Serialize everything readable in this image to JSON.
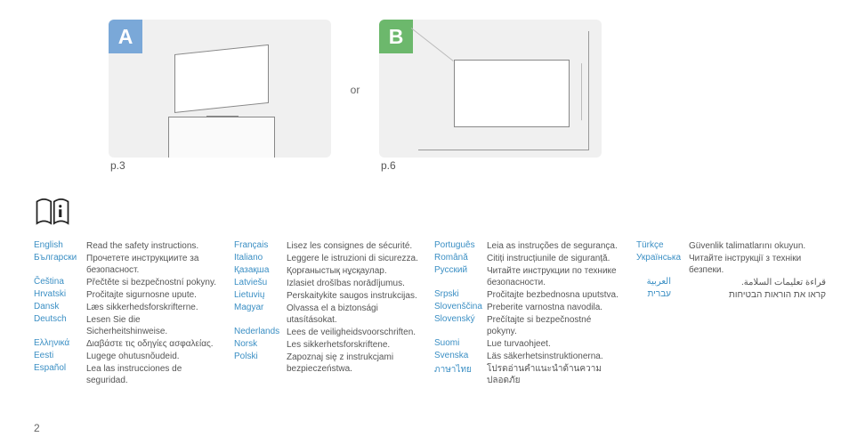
{
  "accent": {
    "a": "#7aa8d8",
    "b": "#6cb86c",
    "lang": "#3b8fc4"
  },
  "panels": {
    "a": {
      "letter": "A",
      "caption": "p.3"
    },
    "sep": "or",
    "b": {
      "letter": "B",
      "caption": "p.6"
    }
  },
  "columns": [
    [
      {
        "name": "English",
        "text": "Read the safety instructions."
      },
      {
        "name": "Български",
        "text": "Прочетете инструкциите за безопасност."
      },
      {
        "name": "Čeština",
        "text": "Přečtěte si bezpečnostní pokyny."
      },
      {
        "name": "Hrvatski",
        "text": "Pročitajte sigurnosne upute."
      },
      {
        "name": "Dansk",
        "text": "Læs sikkerhedsforskrifterne."
      },
      {
        "name": "Deutsch",
        "text": "Lesen Sie die Sicherheitshinweise."
      },
      {
        "name": "Ελληνικά",
        "text": "Διαβάστε τις οδηγίες ασφαλείας."
      },
      {
        "name": "Eesti",
        "text": "Lugege ohutusnõudeid."
      },
      {
        "name": "Español",
        "text": "Lea las instrucciones de seguridad."
      }
    ],
    [
      {
        "name": "Français",
        "text": "Lisez les consignes de sécurité."
      },
      {
        "name": "Italiano",
        "text": "Leggere le istruzioni di sicurezza."
      },
      {
        "name": "Қазақша",
        "text": "Қорғаныстық нұсқаулар."
      },
      {
        "name": "Latviešu",
        "text": "Izlasiet drošības norādījumus."
      },
      {
        "name": "Lietuvių",
        "text": "Perskaitykite saugos instrukcijas."
      },
      {
        "name": "Magyar",
        "text": "Olvassa el a biztonsági utasításokat."
      },
      {
        "name": "Nederlands",
        "text": "Lees de veiligheidsvoorschriften."
      },
      {
        "name": "Norsk",
        "text": "Les sikkerhetsforskriftene."
      },
      {
        "name": "Polski",
        "text": "Zapoznaj się z instrukcjami bezpieczeństwa."
      }
    ],
    [
      {
        "name": "Português",
        "text": "Leia as instruções de segurança."
      },
      {
        "name": "Română",
        "text": "Citiți instrucțiunile de siguranță."
      },
      {
        "name": "Русский",
        "text": "Читайте инструкции по технике безопасности."
      },
      {
        "name": "Srpski",
        "text": "Pročitajte bezbednosna uputstva."
      },
      {
        "name": "Slovenščina",
        "text": "Preberite varnostna navodila."
      },
      {
        "name": "Slovenský",
        "text": "Prečítajte si bezpečnostné pokyny."
      },
      {
        "name": "Suomi",
        "text": "Lue turvaohjeet."
      },
      {
        "name": "Svenska",
        "text": "Läs säkerhetsinstruktionerna."
      },
      {
        "name": "ภาษาไทย",
        "text": "โปรดอ่านคำแนะนำด้านความปลอดภัย"
      }
    ],
    [
      {
        "name": "Türkçe",
        "text": "Güvenlik talimatlarını okuyun."
      },
      {
        "name": "Українська",
        "text": "Читайте інструкції з техніки безпеки."
      },
      {
        "name": "العربية",
        "text": "قراءة تعليمات السلامة.",
        "rtl": true
      },
      {
        "name": "עברית",
        "text": "קראו את הוראות הבטיחות",
        "rtl": true
      }
    ]
  ],
  "page_number": "2"
}
